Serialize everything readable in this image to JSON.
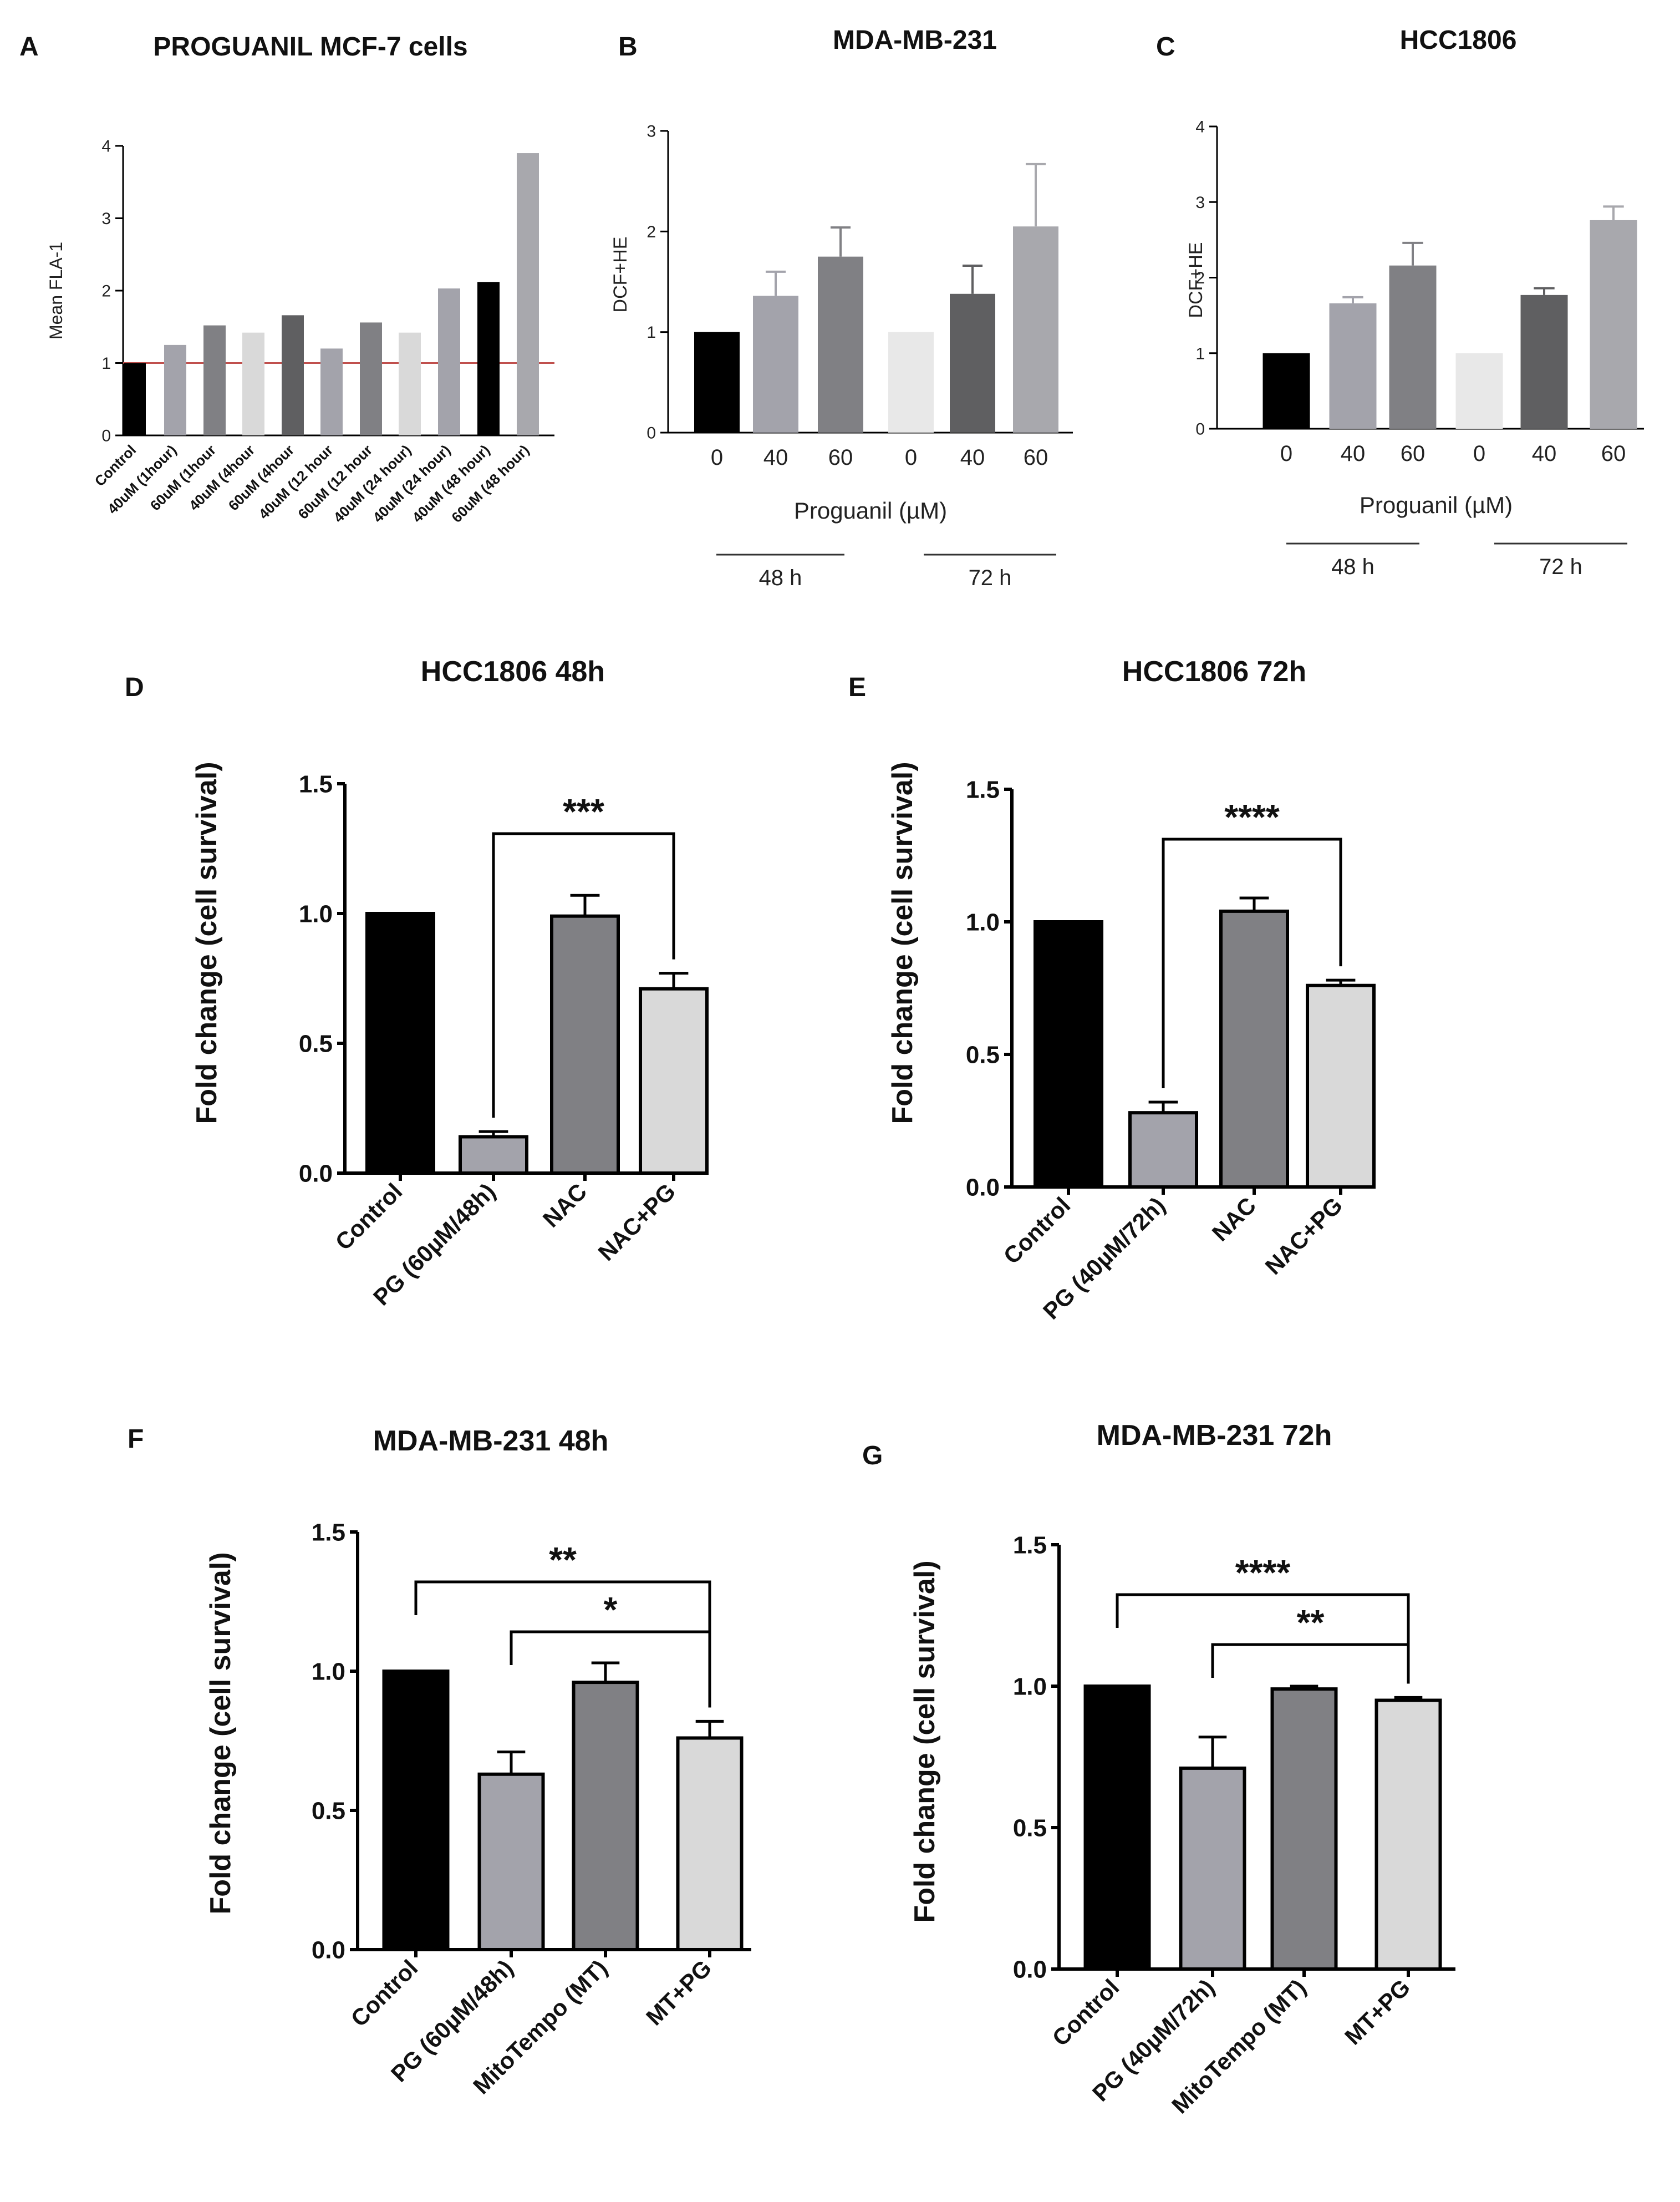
{
  "colors": {
    "black": "#000000",
    "gray1": "#a3a3ab",
    "gray2": "#808084",
    "gray3": "#d9d9d9",
    "gray4": "#5f5f61",
    "gray5": "#e8e8e8",
    "gray6": "#a8a8ad",
    "refline": "#c0504d"
  },
  "chart_data": [
    {
      "id": "A",
      "panel_label": "A",
      "type": "bar",
      "title": "PROGUANIL MCF-7 cells",
      "ylabel": "Mean FLA-1",
      "xlabel": "",
      "ylim": [
        0,
        4
      ],
      "yticks": [
        "0",
        "1",
        "2",
        "3",
        "4"
      ],
      "categories": [
        "Control",
        "40uM (1hour)",
        "60uM (1hour",
        "40uM (4hour",
        "60uM (4hour",
        "40uM (12 hour",
        "60uM (12 hour",
        "40uM (24 hour)",
        "40uM (24 hour)",
        "40uM (48 hour)",
        "60uM (48 hour)"
      ],
      "values": [
        1.0,
        1.25,
        1.52,
        1.42,
        1.66,
        1.2,
        1.56,
        1.42,
        2.03,
        2.12,
        3.9
      ],
      "reference_line": 1.0
    },
    {
      "id": "B",
      "panel_label": "B",
      "type": "bar",
      "title": "MDA-MB-231",
      "ylabel": "DCF+HE",
      "xlabel": "Proguanil (µM)",
      "ylim": [
        0,
        3
      ],
      "yticks": [
        "0",
        "1",
        "2",
        "3"
      ],
      "categories": [
        "0",
        "40",
        "60",
        "0",
        "40",
        "60"
      ],
      "values": [
        1.0,
        1.36,
        1.75,
        1.0,
        1.38,
        2.05
      ],
      "errors": [
        0,
        0.24,
        0.29,
        0,
        0.28,
        0.62
      ],
      "groups": [
        {
          "label": "48 h"
        },
        {
          "label": "72 h"
        }
      ]
    },
    {
      "id": "C",
      "panel_label": "C",
      "type": "bar",
      "title": "HCC1806",
      "ylabel": "DCF+HE",
      "xlabel": "Proguanil (µM)",
      "ylim": [
        0,
        4
      ],
      "yticks": [
        "0",
        "1",
        "2",
        "3",
        "4"
      ],
      "categories": [
        "0",
        "40",
        "60",
        "0",
        "40",
        "60"
      ],
      "values": [
        1.0,
        1.66,
        2.16,
        1.0,
        1.77,
        2.76
      ],
      "errors": [
        0,
        0.08,
        0.3,
        0,
        0.09,
        0.18
      ],
      "groups": [
        {
          "label": "48 h"
        },
        {
          "label": "72 h"
        }
      ]
    },
    {
      "id": "D",
      "panel_label": "D",
      "type": "bar",
      "title": "HCC1806 48h",
      "ylabel": "Fold change (cell survival)",
      "xlabel": "",
      "ylim": [
        0,
        1.5
      ],
      "yticks": [
        "0.0",
        "0.5",
        "1.0",
        "1.5"
      ],
      "categories": [
        "Control",
        "PG (60µM/48h)",
        "NAC",
        "NAC+PG"
      ],
      "values": [
        1.0,
        0.14,
        0.99,
        0.71
      ],
      "errors": [
        0,
        0.02,
        0.08,
        0.06
      ],
      "significance": [
        {
          "from": 1,
          "to": 3,
          "label": "***"
        }
      ]
    },
    {
      "id": "E",
      "panel_label": "E",
      "type": "bar",
      "title": "HCC1806 72h",
      "ylabel": "Fold change (cell survival)",
      "xlabel": "",
      "ylim": [
        0,
        1.5
      ],
      "yticks": [
        "0.0",
        "0.5",
        "1.0",
        "1.5"
      ],
      "categories": [
        "Control",
        "PG (40µM/72h)",
        "NAC",
        "NAC+PG"
      ],
      "values": [
        1.0,
        0.28,
        1.04,
        0.76
      ],
      "errors": [
        0,
        0.04,
        0.05,
        0.02
      ],
      "significance": [
        {
          "from": 1,
          "to": 3,
          "label": "****"
        }
      ]
    },
    {
      "id": "F",
      "panel_label": "F",
      "type": "bar",
      "title": "MDA-MB-231 48h",
      "ylabel": "Fold change (cell survival)",
      "xlabel": "",
      "ylim": [
        0,
        1.5
      ],
      "yticks": [
        "0.0",
        "0.5",
        "1.0",
        "1.5"
      ],
      "categories": [
        "Control",
        "PG (60µM/48h)",
        "MitoTempo (MT)",
        "MT+PG"
      ],
      "values": [
        1.0,
        0.63,
        0.96,
        0.76
      ],
      "errors": [
        0,
        0.08,
        0.07,
        0.06
      ],
      "significance": [
        {
          "from": 0,
          "to": 3,
          "label": "**"
        },
        {
          "from": 1,
          "to": 3,
          "label": "*"
        }
      ]
    },
    {
      "id": "G",
      "panel_label": "G",
      "type": "bar",
      "title": "MDA-MB-231 72h",
      "ylabel": "Fold change (cell survival)",
      "xlabel": "",
      "ylim": [
        0,
        1.5
      ],
      "yticks": [
        "0.0",
        "0.5",
        "1.0",
        "1.5"
      ],
      "categories": [
        "Control",
        "PG (40µM/72h)",
        "MitoTempo (MT)",
        "MT+PG"
      ],
      "values": [
        1.0,
        0.71,
        0.99,
        0.95
      ],
      "errors": [
        0,
        0.11,
        0.01,
        0.01
      ],
      "significance": [
        {
          "from": 0,
          "to": 3,
          "label": "****"
        },
        {
          "from": 1,
          "to": 3,
          "label": "**"
        }
      ]
    }
  ]
}
